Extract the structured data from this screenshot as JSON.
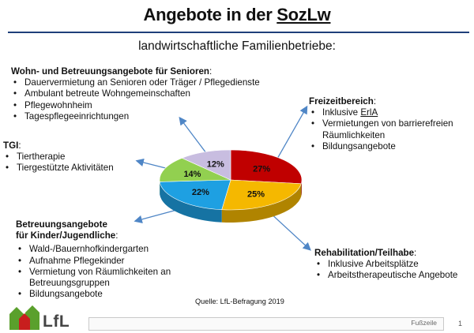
{
  "title_prefix": "Angebote in der ",
  "title_underlined": "SozLw",
  "subtitle": "landwirtschaftliche Familienbetriebe:",
  "seniors": {
    "heading": "Wohn- und Betreuungsangebote für Senioren",
    "heading_suffix": ":",
    "items": [
      "Dauervermietung an Senioren oder Träger / Pflegedienste",
      "Ambulant betreute Wohngemeinschaften",
      "Pflegewohnheim",
      "Tagespflegeeinrichtungen"
    ]
  },
  "tgi": {
    "heading": "TGI",
    "heading_suffix": ":",
    "items": [
      "Tiertherapie",
      "Tiergestützte Aktivitäten"
    ]
  },
  "leisure": {
    "heading": "Freizeitbereich",
    "heading_suffix": ":",
    "item1_prefix": "Inklusive ",
    "item1_underlined": "ErlA",
    "items": [
      "Vermietungen von barrierefreien Räumlichkeiten",
      "Bildungsangebote"
    ]
  },
  "children": {
    "heading_line1": "Betreuungsangebote",
    "heading_line2": "für Kinder/Jugendliche",
    "heading_suffix": ":",
    "items": [
      "Wald-/Bauernhofkindergarten",
      "Aufnahme Pflegekinder",
      "Vermietung von Räumlichkeiten an Betreuungsgruppen",
      "Bildungsangebote"
    ]
  },
  "rehab": {
    "heading": "Rehabilitation/Teilhabe",
    "heading_suffix": ":",
    "items": [
      "Inklusive Arbeitsplätze",
      "Arbeitstherapeutische Angebote"
    ]
  },
  "source": "Quelle: LfL-Befragung 2019",
  "footer": {
    "text": "Fußzeile",
    "page": "1"
  },
  "logo_text": "LfL",
  "colors": {
    "title_rule": "#1f3f7a",
    "arrow": "#4f86c6",
    "logo_green": "#5aa02c",
    "logo_red": "#c81e1e"
  },
  "chart_data": {
    "type": "pie",
    "style": "3d",
    "slices": [
      {
        "key": "leisure",
        "label": "27%",
        "value": 27,
        "color": "#c00000"
      },
      {
        "key": "rehab",
        "label": "25%",
        "value": 25,
        "color": "#f5b800"
      },
      {
        "key": "children",
        "label": "22%",
        "value": 22,
        "color": "#1ea0e2"
      },
      {
        "key": "tgi",
        "label": "14%",
        "value": 14,
        "color": "#92d050"
      },
      {
        "key": "seniors",
        "label": "12%",
        "value": 12,
        "color": "#c8bde0"
      }
    ]
  }
}
